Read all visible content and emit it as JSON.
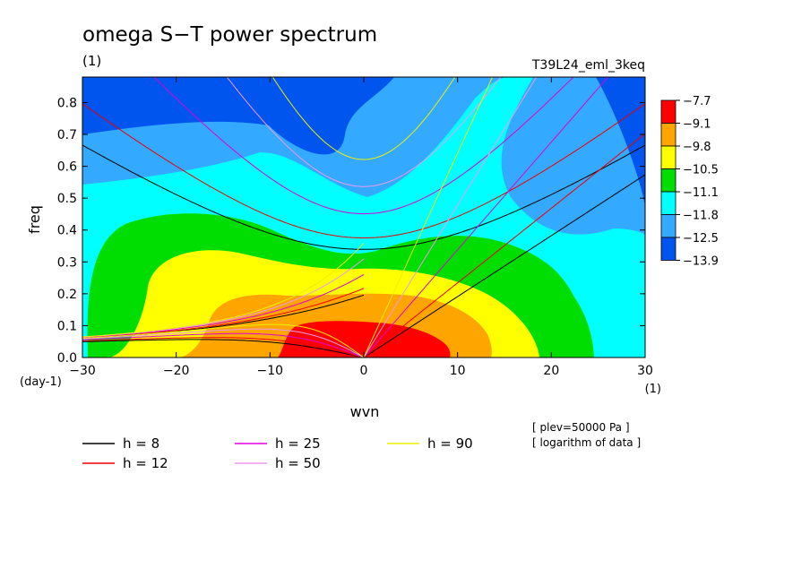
{
  "chart_data": {
    "type": "heatmap",
    "title": "omega S−T power spectrum",
    "subtitle": "(1)",
    "run_label": "T39L24_eml_3keq",
    "xlabel": "wvn",
    "ylabel": "freq",
    "x_unit": "(1)",
    "y_unit": "(day-1)",
    "xlim": [
      -30,
      30
    ],
    "ylim": [
      0,
      0.88
    ],
    "x_ticks": [
      "-30",
      "-20",
      "-10",
      "0",
      "10",
      "20",
      "30"
    ],
    "y_ticks": [
      "0.0",
      "0.1",
      "0.2",
      "0.3",
      "0.4",
      "0.5",
      "0.6",
      "0.7",
      "0.8"
    ],
    "colorbar": {
      "levels": [
        "-7.7",
        "-9.1",
        "-9.8",
        "-10.5",
        "-11.1",
        "-11.8",
        "-12.5",
        "-13.9"
      ],
      "colors": [
        "#ff0000",
        "#ffa500",
        "#ffff00",
        "#00dd00",
        "#00ffff",
        "#33aaff",
        "#0055ee"
      ]
    },
    "notes": [
      "[ plev=50000 Pa ]",
      "[ logarithm of data ]"
    ],
    "dispersion_curves": [
      {
        "label": "h =  8",
        "h": 8,
        "color": "#000000"
      },
      {
        "label": "h = 12",
        "h": 12,
        "color": "#ee0000"
      },
      {
        "label": "h = 25",
        "h": 25,
        "color": "#dd00dd"
      },
      {
        "label": "h = 50",
        "h": 50,
        "color": "#ee99ee"
      },
      {
        "label": "h = 90",
        "h": 90,
        "color": "#eeee00"
      }
    ]
  }
}
